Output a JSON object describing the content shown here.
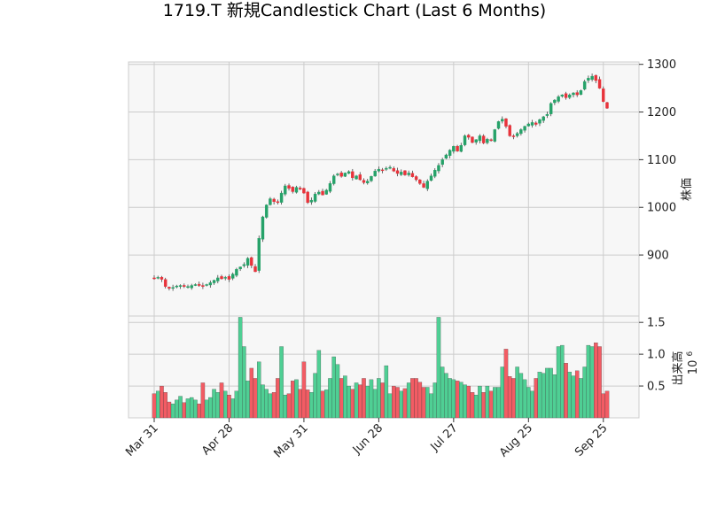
{
  "chart_data": {
    "type": "candlestick",
    "title": "1719.T 新規Candlestick Chart (Last 6 Months)",
    "price_axis": {
      "label": "株価",
      "ticks": [
        900,
        1000,
        1100,
        1200,
        1300
      ],
      "range": [
        772,
        1305
      ]
    },
    "volume_axis": {
      "label": "出来高",
      "multiplier_label": "10",
      "multiplier_exp": "6",
      "ticks": [
        "0.5",
        "1.0",
        "1.5"
      ],
      "tick_values": [
        0.5,
        1.0,
        1.5
      ],
      "range": [
        0,
        1.6
      ]
    },
    "x_axis": {
      "tick_labels": [
        "Mar 31",
        "Apr 28",
        "May 31",
        "Jun 28",
        "Jul 27",
        "Aug 25",
        "Sep 25"
      ],
      "tick_index": [
        0,
        20,
        40,
        60,
        80,
        100,
        120
      ]
    },
    "colors": {
      "up": "#26a269",
      "down": "#e8333b",
      "up_vol": "#4fcf94",
      "down_vol": "#f25c64",
      "grid": "#cccccc",
      "panel": "#f7f7f7"
    },
    "grid": true,
    "close": [
      850,
      853,
      849,
      834,
      830,
      832,
      835,
      836,
      834,
      834,
      836,
      838,
      836,
      834,
      838,
      842,
      847,
      852,
      850,
      853,
      849,
      860,
      870,
      875,
      880,
      893,
      878,
      865,
      935,
      980,
      1005,
      1018,
      1012,
      1010,
      1030,
      1045,
      1040,
      1033,
      1042,
      1038,
      1030,
      1010,
      1015,
      1028,
      1032,
      1026,
      1036,
      1050,
      1066,
      1070,
      1065,
      1072,
      1075,
      1062,
      1066,
      1058,
      1052,
      1055,
      1065,
      1076,
      1080,
      1077,
      1082,
      1084,
      1076,
      1071,
      1074,
      1068,
      1072,
      1064,
      1058,
      1050,
      1042,
      1055,
      1066,
      1078,
      1088,
      1100,
      1110,
      1120,
      1128,
      1118,
      1130,
      1150,
      1147,
      1136,
      1142,
      1150,
      1135,
      1143,
      1140,
      1163,
      1180,
      1185,
      1170,
      1150,
      1148,
      1155,
      1163,
      1170,
      1175,
      1178,
      1174,
      1184,
      1190,
      1195,
      1218,
      1225,
      1232,
      1236,
      1230,
      1236,
      1240,
      1236,
      1245,
      1264,
      1271,
      1275,
      1266,
      1250,
      1222,
      1208
    ]
  }
}
